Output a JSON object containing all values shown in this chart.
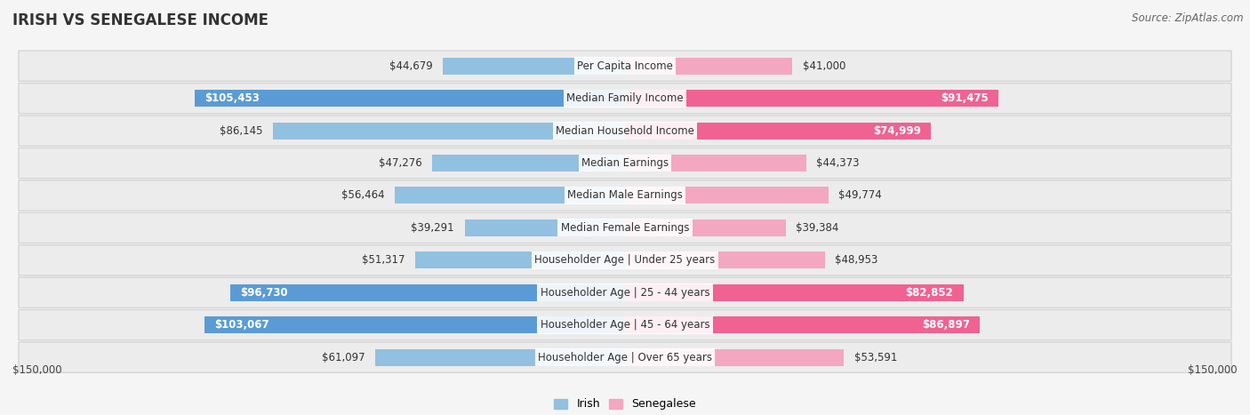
{
  "title": "Irish vs Senegalese Income",
  "source": "Source: ZipAtlas.com",
  "categories": [
    "Per Capita Income",
    "Median Family Income",
    "Median Household Income",
    "Median Earnings",
    "Median Male Earnings",
    "Median Female Earnings",
    "Householder Age | Under 25 years",
    "Householder Age | 25 - 44 years",
    "Householder Age | 45 - 64 years",
    "Householder Age | Over 65 years"
  ],
  "irish_values": [
    44679,
    105453,
    86145,
    47276,
    56464,
    39291,
    51317,
    96730,
    103067,
    61097
  ],
  "senegalese_values": [
    41000,
    91475,
    74999,
    44373,
    49774,
    39384,
    48953,
    82852,
    86897,
    53591
  ],
  "irish_labels": [
    "$44,679",
    "$105,453",
    "$86,145",
    "$47,276",
    "$56,464",
    "$39,291",
    "$51,317",
    "$96,730",
    "$103,067",
    "$61,097"
  ],
  "senegalese_labels": [
    "$41,000",
    "$91,475",
    "$74,999",
    "$44,373",
    "$49,774",
    "$39,384",
    "$48,953",
    "$82,852",
    "$86,897",
    "$53,591"
  ],
  "max_value": 150000,
  "irish_color_light": "#92C0E0",
  "irish_color_dark": "#5B9BD5",
  "senegalese_color_light": "#F4A7C0",
  "senegalese_color_dark": "#F06292",
  "irish_dark_indices": [
    1,
    7,
    8
  ],
  "senegalese_dark_indices": [
    1,
    2,
    7,
    8
  ],
  "background_color": "#f5f5f5",
  "title_fontsize": 12,
  "label_fontsize": 8.5,
  "legend_fontsize": 9
}
